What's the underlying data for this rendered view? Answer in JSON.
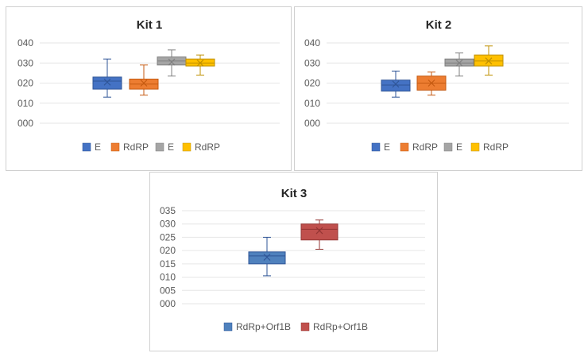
{
  "chart_data": [
    {
      "type": "box",
      "title": "Kit 1",
      "ylim": [
        0,
        40
      ],
      "yticks": [
        0,
        10,
        20,
        30,
        40
      ],
      "ytick_labels": [
        "000",
        "010",
        "020",
        "030",
        "040"
      ],
      "xlabel": "",
      "ylabel": "",
      "grid": true,
      "legend": "bottom",
      "series": [
        {
          "name": "E",
          "color": "#4472C4",
          "border": "#2F5597",
          "min": 13,
          "q1": 17,
          "median": 21,
          "q3": 23,
          "max": 32,
          "mean": 20.5
        },
        {
          "name": "RdRP",
          "color": "#ED7D31",
          "border": "#C55A11",
          "min": 14,
          "q1": 17,
          "median": 19.5,
          "q3": 22,
          "max": 29,
          "mean": 20
        },
        {
          "name": "E",
          "color": "#A5A5A5",
          "border": "#7F7F7F",
          "min": 23.5,
          "q1": 29,
          "median": 31,
          "q3": 33,
          "max": 36.5,
          "mean": 30.5
        },
        {
          "name": "RdRP",
          "color": "#FFC000",
          "border": "#BF9000",
          "min": 24,
          "q1": 28.5,
          "median": 30,
          "q3": 32,
          "max": 34,
          "mean": 30
        }
      ]
    },
    {
      "type": "box",
      "title": "Kit 2",
      "ylim": [
        0,
        40
      ],
      "yticks": [
        0,
        10,
        20,
        30,
        40
      ],
      "ytick_labels": [
        "000",
        "010",
        "020",
        "030",
        "040"
      ],
      "xlabel": "",
      "ylabel": "",
      "grid": true,
      "legend": "bottom",
      "series": [
        {
          "name": "E",
          "color": "#4472C4",
          "border": "#2F5597",
          "min": 13,
          "q1": 16,
          "median": 19,
          "q3": 21.5,
          "max": 26,
          "mean": 19.5
        },
        {
          "name": "RdRP",
          "color": "#ED7D31",
          "border": "#C55A11",
          "min": 14,
          "q1": 16.5,
          "median": 20,
          "q3": 23.5,
          "max": 25.5,
          "mean": 20
        },
        {
          "name": "E",
          "color": "#A5A5A5",
          "border": "#7F7F7F",
          "min": 23.5,
          "q1": 28.5,
          "median": 30,
          "q3": 32,
          "max": 35,
          "mean": 30
        },
        {
          "name": "RdRP",
          "color": "#FFC000",
          "border": "#BF9000",
          "min": 24,
          "q1": 28.5,
          "median": 31,
          "q3": 34,
          "max": 38.5,
          "mean": 31
        }
      ]
    },
    {
      "type": "box",
      "title": "Kit 3",
      "ylim": [
        0,
        35
      ],
      "yticks": [
        0,
        5,
        10,
        15,
        20,
        25,
        30,
        35
      ],
      "ytick_labels": [
        "000",
        "005",
        "010",
        "015",
        "020",
        "025",
        "030",
        "035"
      ],
      "xlabel": "",
      "ylabel": "",
      "grid": true,
      "legend": "bottom",
      "series": [
        {
          "name": "RdRp+Orf1B",
          "color": "#4F81BD",
          "border": "#2F5597",
          "min": 10.5,
          "q1": 15,
          "median": 18,
          "q3": 19.5,
          "max": 25,
          "mean": 17.5
        },
        {
          "name": "RdRp+Orf1B",
          "color": "#C0504D",
          "border": "#943634",
          "min": 20.5,
          "q1": 24,
          "median": 28,
          "q3": 30,
          "max": 31.5,
          "mean": 27.5
        }
      ]
    }
  ]
}
